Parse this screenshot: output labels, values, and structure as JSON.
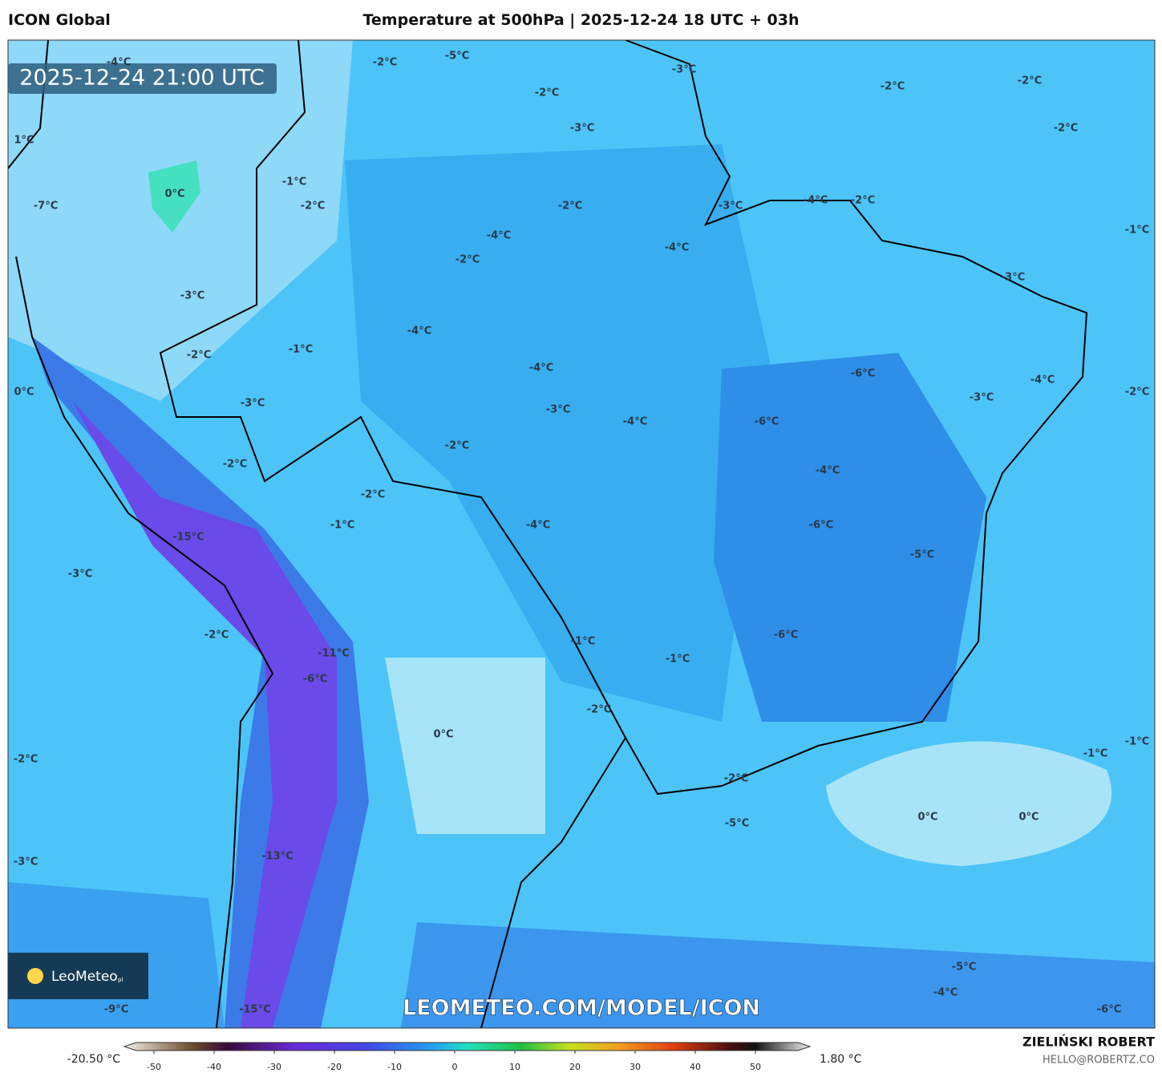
{
  "header": {
    "model": "ICON Global",
    "title": "Temperature at 500hPa | 2025-12-24 18 UTC + 03h"
  },
  "timestamp": "2025-12-24 21:00 UTC",
  "labels": [
    "-4°C",
    "-2°C",
    "-5°C",
    "-3°C",
    "-2°C",
    "-2°C",
    "-2°C",
    "-3°C",
    "-2°C",
    "1°C",
    "0°C",
    "-1°C",
    "-2°C",
    "-7°C",
    "-2°C",
    "-3°C",
    "-4°C",
    "-2°C",
    "-4°C",
    "-1°C",
    "-4°C",
    "-2°C",
    "-3°C",
    "-3°C",
    "-4°C",
    "-1°C",
    "-2°C",
    "-4°C",
    "-6°C",
    "-4°C",
    "0°C",
    "-2°C",
    "-3°C",
    "-3°C",
    "-3°C",
    "-4°C",
    "-6°C",
    "-2°C",
    "-2°C",
    "-4°C",
    "-2°C",
    "-1°C",
    "-4°C",
    "-6°C",
    "-15°C",
    "-5°C",
    "-3°C",
    "-2°C",
    "-6°C",
    "-1°C",
    "-11°C",
    "-1°C",
    "-6°C",
    "-2°C",
    "0°C",
    "-2°C",
    "-1°C",
    "-1°C",
    "-2°C",
    "-5°C",
    "0°C",
    "0°C",
    "-13°C",
    "-3°C",
    "-5°C",
    "-4°C",
    "-9°C",
    "-15°C",
    "-6°C"
  ],
  "watermark": "LEOMETEO.COM/MODEL/ICON",
  "logo": {
    "name": "LeoMeteo",
    "suffix": "pl"
  },
  "colorbar": {
    "min_label": "-20.50 °C",
    "max_label": "1.80 °C",
    "ticks": [
      -50,
      -40,
      -30,
      -20,
      -10,
      0,
      10,
      20,
      30,
      40,
      50
    ]
  },
  "footer": {
    "author": "ZIELIŃSKI ROBERT",
    "email": "HELLO@ROBERTZ.CO"
  }
}
